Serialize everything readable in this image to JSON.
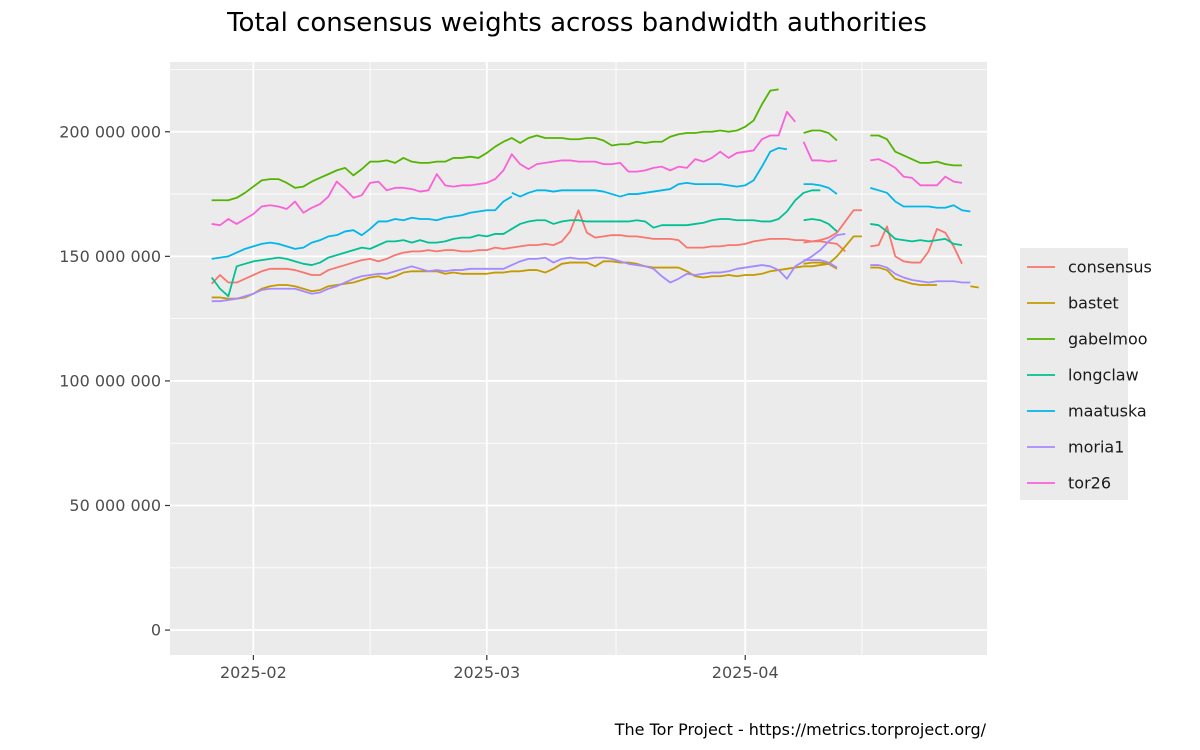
{
  "chart_data": {
    "type": "line",
    "title": "Total consensus weights across bandwidth authorities",
    "caption": "The Tor Project - https://metrics.torproject.org/",
    "xlabel": "",
    "ylabel": "",
    "xlim": [
      "2025-01-22",
      "2025-04-30"
    ],
    "ylim": [
      -10000000,
      228000000
    ],
    "x_ticks": [
      {
        "date": "2025-02-01",
        "label": "2025-02"
      },
      {
        "date": "2025-03-01",
        "label": "2025-03"
      },
      {
        "date": "2025-04-01",
        "label": "2025-04"
      }
    ],
    "y_ticks": [
      {
        "value": 0,
        "label": "0"
      },
      {
        "value": 50000000,
        "label": "50 000 000"
      },
      {
        "value": 100000000,
        "label": "100 000 000"
      },
      {
        "value": 150000000,
        "label": "150 000 000"
      },
      {
        "value": 200000000,
        "label": "200 000 000"
      }
    ],
    "grid": true,
    "legend_position": "right",
    "series": [
      {
        "name": "consensus",
        "color": "#F8766D",
        "segments": [
          {
            "start": "2025-01-27",
            "values": [
              139,
              142.5,
              139.5,
              139.5,
              141,
              142.5,
              144,
              145,
              145,
              145,
              144.5,
              143.5,
              142.5,
              142.5,
              144.5,
              145.5,
              146.5,
              147.5,
              148.5,
              149,
              148,
              149,
              150.5,
              151.5,
              152,
              152,
              152.5,
              152,
              152.5,
              152.5,
              152,
              152,
              152.5,
              152.5,
              153.5,
              153,
              153.5,
              154,
              154.5,
              154.5,
              155,
              154.5,
              156,
              160,
              168.5,
              159.5,
              157.5,
              158,
              158.5,
              158.5,
              158,
              158,
              157.5,
              157,
              157,
              157,
              156.5,
              153.5,
              153.5,
              153.5,
              154,
              154,
              154.5,
              154.5,
              155,
              156,
              156.5,
              157,
              157,
              157,
              156.5,
              156.5,
              156,
              156.5,
              157.5,
              159.5,
              164,
              168.5,
              168.5
            ]
          },
          {
            "start": "2025-04-08",
            "values": [
              155.5,
              156,
              156,
              155.5,
              155,
              152
            ]
          },
          {
            "start": "2025-04-16",
            "values": [
              154,
              154.5,
              162,
              150,
              148,
              147.5,
              147.5,
              152,
              161,
              159.5,
              154,
              147
            ]
          }
        ]
      },
      {
        "name": "bastet",
        "color": "#C49A00",
        "segments": [
          {
            "start": "2025-01-27",
            "values": [
              133.5,
              133.5,
              133,
              133,
              133.5,
              135,
              137,
              138,
              138.5,
              138.5,
              138,
              137,
              136,
              136.5,
              138,
              138.5,
              139,
              139.5,
              140.5,
              141.5,
              142,
              141,
              142,
              143.5,
              144,
              144,
              144,
              144,
              143,
              143.5,
              143,
              143,
              143,
              143,
              143.5,
              143.5,
              144,
              144,
              144.5,
              144.5,
              143.5,
              145,
              147,
              147.5,
              147.5,
              147.5,
              146,
              148,
              148,
              147.5,
              147.5,
              147,
              146,
              145.5,
              145.5,
              145.5,
              145.5,
              144,
              142,
              141.5,
              142,
              142,
              142.5,
              142,
              142.5,
              142.5,
              143,
              144,
              144.5,
              145,
              145.5,
              146,
              146,
              146.5,
              147,
              150,
              154,
              158,
              158
            ]
          },
          {
            "start": "2025-04-08",
            "values": [
              147,
              147.5,
              147.5,
              147,
              145
            ]
          },
          {
            "start": "2025-04-16",
            "values": [
              145.5,
              145.5,
              144.5,
              141,
              140,
              139,
              138.5,
              138.5,
              138.5
            ]
          },
          {
            "start": "2025-04-28",
            "values": [
              138,
              137.5
            ]
          }
        ]
      },
      {
        "name": "gabelmoo",
        "color": "#53B400",
        "segments": [
          {
            "start": "2025-01-27",
            "values": [
              172.5,
              172.5,
              172.5,
              173.5,
              175.5,
              178,
              180.5,
              181,
              181,
              179.5,
              177.5,
              178,
              180,
              181.5,
              183,
              184.5,
              185.5,
              182.5,
              185,
              188,
              188,
              188.5,
              187.5,
              189.5,
              188,
              187.5,
              187.5,
              188,
              188,
              189.5,
              189.5,
              190,
              189.5,
              191.5,
              194,
              196,
              197.5,
              195.5,
              197.5,
              198.5,
              197.5,
              197.5,
              197.5,
              197,
              197,
              197.5,
              197.5,
              196.5,
              194.5,
              195,
              195,
              196,
              195.5,
              196,
              196,
              198,
              199,
              199.5,
              199.5,
              200,
              200,
              200.5,
              200,
              200.5,
              202,
              204.5,
              211,
              216.5,
              217
            ]
          },
          {
            "start": "2025-04-08",
            "values": [
              199.5,
              200.5,
              200.5,
              199.5,
              196.5
            ]
          },
          {
            "start": "2025-04-16",
            "values": [
              198.5,
              198.5,
              197,
              192,
              190.5,
              189,
              187.5,
              187.5,
              188,
              187,
              186.5,
              186.5
            ]
          }
        ]
      },
      {
        "name": "longclaw",
        "color": "#00C094",
        "segments": [
          {
            "start": "2025-01-27",
            "values": [
              141.5,
              137,
              134,
              146,
              147,
              148,
              148.5,
              149,
              149.5,
              149,
              148,
              147,
              146.5,
              147.5,
              149.5,
              150.5,
              151.5,
              152.5,
              153.5,
              153,
              154.5,
              156,
              156,
              156.5,
              155.5,
              156.5,
              155.5,
              155.5,
              156,
              157,
              157.5,
              157.5,
              158.5,
              158,
              159,
              159,
              161,
              163,
              164,
              164.5,
              164.5,
              163,
              164,
              164.5,
              164.5,
              164,
              164,
              164,
              164,
              164,
              164,
              164.5,
              164,
              161.5,
              162.5,
              162.5,
              162.5,
              162.5,
              163,
              163.5,
              164.5,
              165,
              165,
              164.5,
              164.5,
              164.5,
              164,
              164,
              165,
              168,
              172.5,
              175.5,
              176.5,
              176.5
            ]
          },
          {
            "start": "2025-04-08",
            "values": [
              164.5,
              165,
              164.5,
              163,
              160
            ]
          },
          {
            "start": "2025-04-16",
            "values": [
              163,
              162.5,
              160,
              157,
              156.5,
              156,
              156.5,
              156,
              156.5,
              157,
              155,
              154.5
            ]
          }
        ]
      },
      {
        "name": "maatuska",
        "color": "#00B6EB",
        "segments": [
          {
            "start": "2025-01-27",
            "values": [
              149,
              149.5,
              150,
              151.5,
              153,
              154,
              155,
              155.5,
              155,
              154,
              153,
              153.5,
              155.5,
              156.5,
              158,
              158.5,
              160,
              160.5,
              158.5,
              161,
              164,
              164,
              165,
              164.5,
              165.5,
              165,
              165,
              164.5,
              165.5,
              166,
              166.5,
              167.5,
              168,
              168.5,
              168.5,
              172,
              174
            ]
          },
          {
            "start": "2025-03-04",
            "values": [
              175.5,
              174,
              175.5,
              176.5,
              176.5,
              176,
              176.5,
              176.5,
              176.5,
              176.5,
              176.5,
              176,
              175,
              174,
              175,
              175,
              175.5,
              176,
              176.5,
              177,
              179,
              179.5,
              179,
              179,
              179,
              179,
              178.5,
              178,
              178.5,
              180.5,
              186,
              192,
              193.5,
              193
            ]
          },
          {
            "start": "2025-04-08",
            "values": [
              179,
              179,
              178.5,
              177.5,
              175
            ]
          },
          {
            "start": "2025-04-16",
            "values": [
              177.5,
              176.5,
              175.5,
              172,
              170,
              170,
              170,
              170,
              169.5,
              169.5,
              170.5,
              168.5,
              168
            ]
          }
        ]
      },
      {
        "name": "moria1",
        "color": "#A58AFF",
        "segments": [
          {
            "start": "2025-01-27",
            "values": [
              132,
              132,
              132.5,
              133,
              134,
              135,
              136.5,
              137,
              137,
              137,
              137,
              136,
              135,
              135.5,
              137,
              138,
              139.5,
              141,
              142,
              142.5,
              143,
              143,
              144,
              145,
              146,
              145,
              144,
              144.5,
              144,
              144.5,
              144.5,
              145,
              145,
              145,
              145,
              145,
              146.5,
              148,
              149,
              149,
              149.5,
              147.5,
              149,
              149.5,
              149,
              149,
              149.5,
              149.5,
              149,
              148,
              147,
              146.5,
              146,
              145,
              142,
              139.5,
              141,
              143,
              142.5,
              143,
              143.5,
              143.5,
              144,
              145,
              145.5,
              146,
              146.5,
              146,
              144.5,
              141,
              146,
              148,
              150,
              152.5,
              156,
              158.5,
              159
            ]
          },
          {
            "start": "2025-04-08",
            "values": [
              148.5,
              148.5,
              148.5,
              147.5,
              145.5
            ]
          },
          {
            "start": "2025-04-16",
            "values": [
              146.5,
              146.5,
              145.5,
              143,
              141.5,
              140.5,
              140,
              139.5,
              140,
              140,
              140,
              139.5,
              139.5
            ]
          }
        ]
      },
      {
        "name": "tor26",
        "color": "#FB61D7",
        "segments": [
          {
            "start": "2025-01-27",
            "values": [
              163,
              162.5,
              165,
              163,
              165,
              167,
              170,
              170.5,
              170,
              169,
              172,
              167.5,
              169.5,
              171,
              174,
              180,
              177,
              173.5,
              174.5,
              179.5,
              180,
              176.5,
              177.5,
              177.5,
              177,
              176,
              176.5,
              183,
              178.5,
              178,
              178.5,
              178.5,
              179,
              179.5,
              181,
              184.5,
              191,
              187,
              185,
              187,
              187.5,
              188,
              188.5,
              188.5,
              188,
              188,
              188,
              187,
              187,
              187.5,
              184,
              184,
              184.5,
              185.5,
              186,
              184.5,
              186,
              185.5,
              189,
              188,
              189.5,
              192,
              189.5,
              191.5,
              192,
              192.5,
              197,
              198.5,
              198.5,
              208,
              204
            ]
          },
          {
            "start": "2025-04-08",
            "values": [
              196,
              188.5,
              188.5,
              188,
              188.5
            ]
          },
          {
            "start": "2025-04-16",
            "values": [
              188.5,
              189,
              187.5,
              185.5,
              182,
              181.5,
              178.5,
              178.5,
              178.5,
              182,
              180,
              179.5
            ]
          }
        ]
      }
    ]
  }
}
